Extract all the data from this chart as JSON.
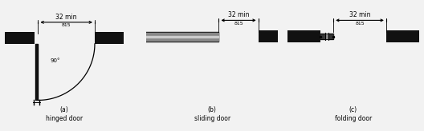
{
  "bg_color": "#f2f2f2",
  "line_color": "#000000",
  "wall_color": "#111111",
  "panels": [
    "(a)\nhinged door",
    "(b)\nsliding door",
    "(c)\nfolding door"
  ],
  "dim_label_top": "32 min",
  "dim_label_bot": "815",
  "figsize": [
    5.28,
    1.64
  ],
  "dpi": 100
}
